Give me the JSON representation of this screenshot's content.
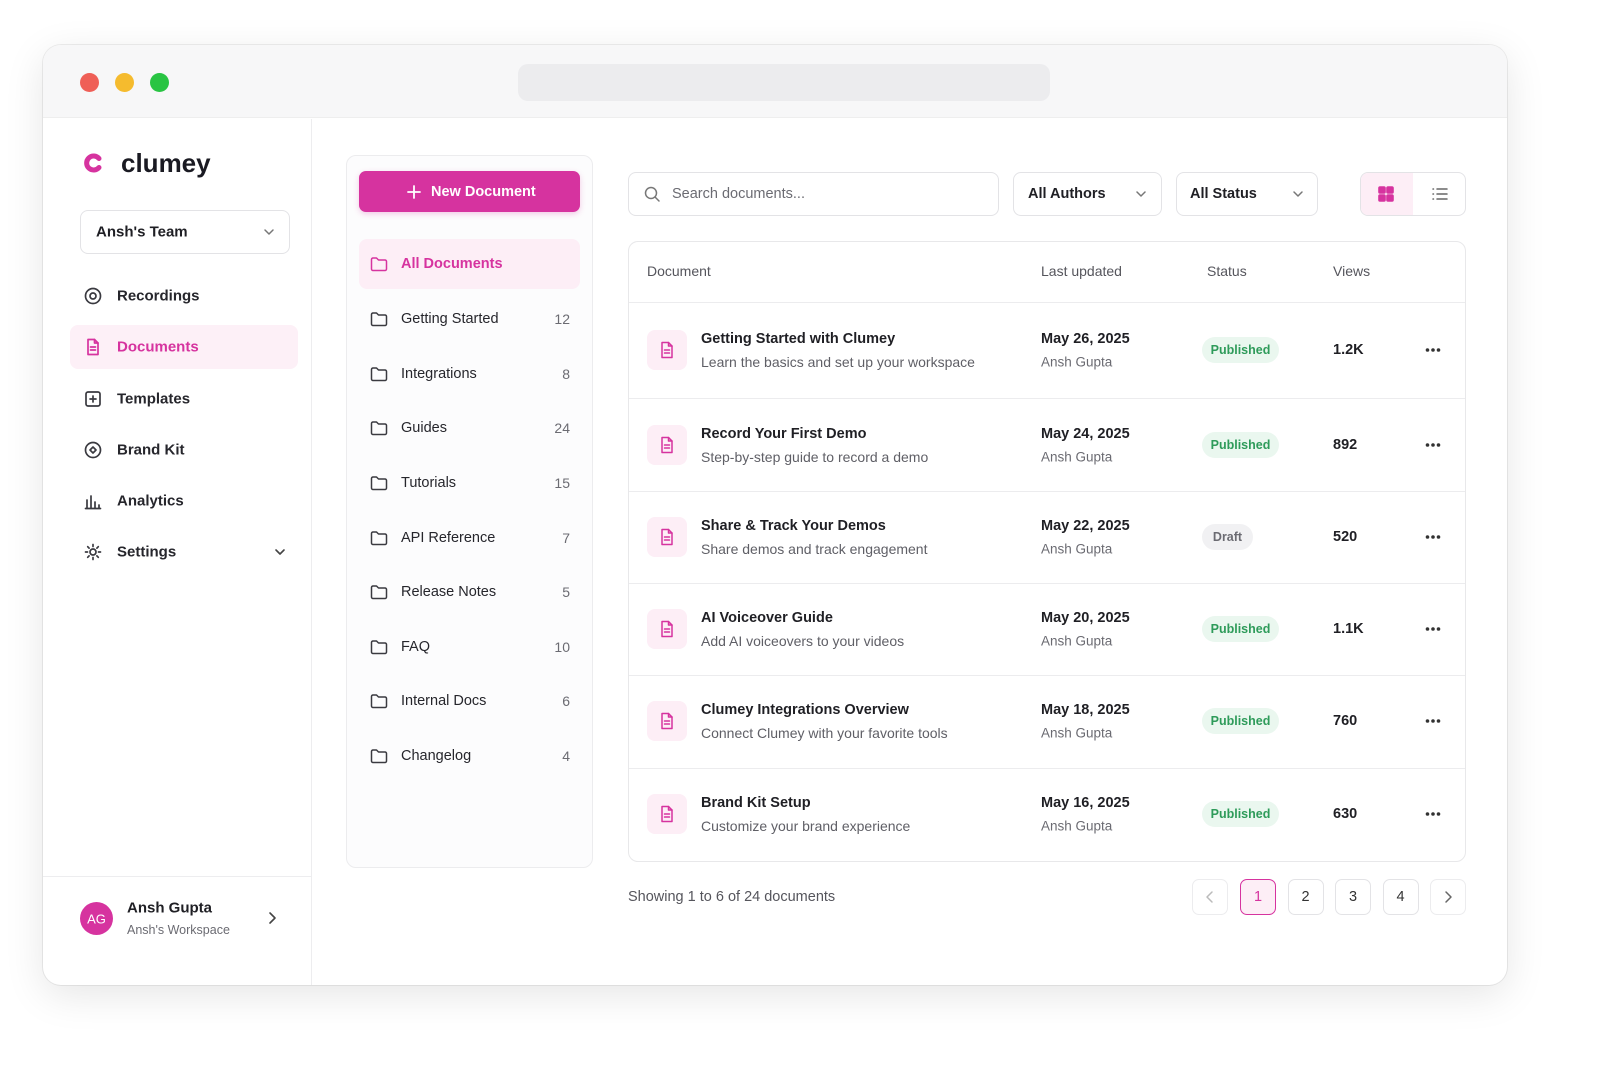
{
  "sidebar": {
    "brand": "clumey",
    "team": "Ansh's Team",
    "nav": [
      "Recordings",
      "Documents",
      "Templates",
      "Brand Kit",
      "Analytics",
      "Settings"
    ],
    "user": {
      "initials": "AG",
      "name": "Ansh Gupta",
      "workspace": "Ansh's Workspace"
    }
  },
  "folders": {
    "new_button": "New Document",
    "items": [
      {
        "label": "All Documents"
      },
      {
        "label": "Getting Started",
        "count": 12
      },
      {
        "label": "Integrations",
        "count": 8
      },
      {
        "label": "Guides",
        "count": 24
      },
      {
        "label": "Tutorials",
        "count": 15
      },
      {
        "label": "API Reference",
        "count": 7
      },
      {
        "label": "Release Notes",
        "count": 5
      },
      {
        "label": "FAQ",
        "count": 10
      },
      {
        "label": "Internal Docs",
        "count": 6
      },
      {
        "label": "Changelog",
        "count": 4
      }
    ]
  },
  "toolbar": {
    "search_placeholder": "Search documents...",
    "authors": "All Authors",
    "status": "All Status"
  },
  "table": {
    "columns": [
      "Document",
      "Last updated",
      "Status",
      "Views"
    ],
    "rows": [
      {
        "title": "Getting Started with Clumey",
        "subtitle": "Learn the basics and set up your workspace",
        "date": "May 26, 2025",
        "author": "Ansh Gupta",
        "status": "Published",
        "views": "1.2K"
      },
      {
        "title": "Record Your First Demo",
        "subtitle": "Step-by-step guide to record a demo",
        "date": "May 24, 2025",
        "author": "Ansh Gupta",
        "status": "Published",
        "views": "892"
      },
      {
        "title": "Share & Track Your Demos",
        "subtitle": "Share demos and track engagement",
        "date": "May 22, 2025",
        "author": "Ansh Gupta",
        "status": "Draft",
        "views": "520"
      },
      {
        "title": "AI Voiceover Guide",
        "subtitle": "Add AI voiceovers to your videos",
        "date": "May 20, 2025",
        "author": "Ansh Gupta",
        "status": "Published",
        "views": "1.1K"
      },
      {
        "title": "Clumey Integrations Overview",
        "subtitle": "Connect Clumey with your favorite tools",
        "date": "May 18, 2025",
        "author": "Ansh Gupta",
        "status": "Published",
        "views": "760"
      },
      {
        "title": "Brand Kit Setup",
        "subtitle": "Customize your brand experience",
        "date": "May 16, 2025",
        "author": "Ansh Gupta",
        "status": "Published",
        "views": "630"
      }
    ]
  },
  "footer": {
    "summary": "Showing 1 to 6 of 24 documents",
    "pages": [
      1,
      2,
      3,
      4
    ]
  }
}
